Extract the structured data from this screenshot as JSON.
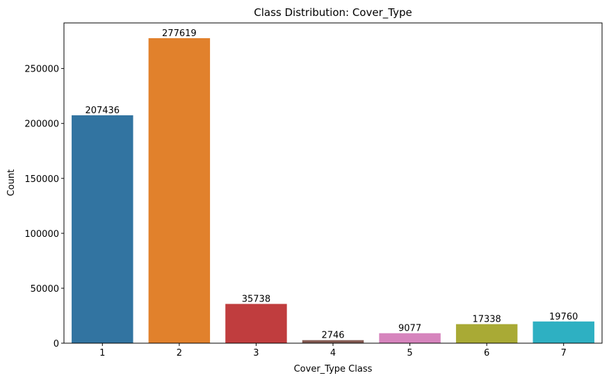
{
  "chart_data": {
    "type": "bar",
    "title": "Class Distribution: Cover_Type",
    "xlabel": "Cover_Type Class",
    "ylabel": "Count",
    "categories": [
      "1",
      "2",
      "3",
      "4",
      "5",
      "6",
      "7"
    ],
    "values": [
      207436,
      277619,
      35738,
      2746,
      9077,
      17338,
      19760
    ],
    "data_labels": [
      "207436",
      "277619",
      "35738",
      "2746",
      "9077",
      "17338",
      "19760"
    ],
    "colors": [
      "#3274a1",
      "#e1812c",
      "#c03d3e",
      "#845b53",
      "#d684bd",
      "#a9aa35",
      "#2eb0c2"
    ],
    "yticks": [
      0,
      50000,
      100000,
      150000,
      200000,
      250000
    ],
    "ytick_labels": [
      "0",
      "50000",
      "100000",
      "150000",
      "200000",
      "250000"
    ],
    "ylim": [
      0,
      291500
    ],
    "grid": false,
    "legend": "none"
  }
}
